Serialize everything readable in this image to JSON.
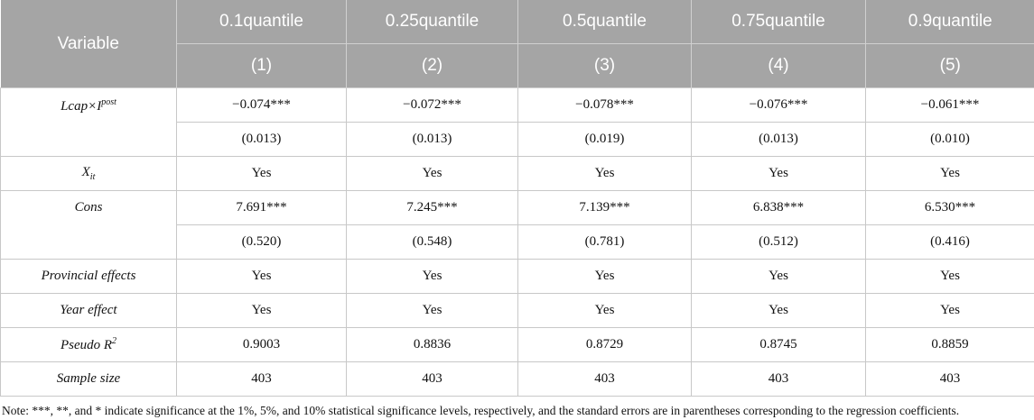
{
  "table": {
    "header": [
      "Variable",
      "0.1quantile",
      "0.25quantile",
      "0.5quantile",
      "0.75quantile",
      "0.9quantile"
    ],
    "model_numbers": [
      "(1)",
      "(2)",
      "(3)",
      "(4)",
      "(5)"
    ],
    "rows": [
      {
        "variable": {
          "text": "Lcap×I",
          "sup": "post"
        },
        "values": [
          "−0.074***",
          "−0.072***",
          "−0.078***",
          "−0.076***",
          "−0.061***"
        ],
        "std_errors": [
          "(0.013)",
          "(0.013)",
          "(0.019)",
          "(0.013)",
          "(0.010)"
        ]
      },
      {
        "variable": {
          "text": "X",
          "sub": "it"
        },
        "values": [
          "Yes",
          "Yes",
          "Yes",
          "Yes",
          "Yes"
        ]
      },
      {
        "variable": {
          "text": "Cons"
        },
        "values": [
          "7.691***",
          "7.245***",
          "7.139***",
          "6.838***",
          "6.530***"
        ],
        "std_errors": [
          "(0.520)",
          "(0.548)",
          "(0.781)",
          "(0.512)",
          "(0.416)"
        ]
      },
      {
        "variable": {
          "text": "Provincial effects"
        },
        "values": [
          "Yes",
          "Yes",
          "Yes",
          "Yes",
          "Yes"
        ]
      },
      {
        "variable": {
          "text": "Year effect"
        },
        "values": [
          "Yes",
          "Yes",
          "Yes",
          "Yes",
          "Yes"
        ]
      },
      {
        "variable": {
          "text": "Pseudo R",
          "sup": "2"
        },
        "values": [
          "0.9003",
          "0.8836",
          "0.8729",
          "0.8745",
          "0.8859"
        ]
      },
      {
        "variable": {
          "text": "Sample size"
        },
        "values": [
          "403",
          "403",
          "403",
          "403",
          "403"
        ]
      }
    ]
  },
  "note": "Note: ***, **, and * indicate significance at the 1%, 5%, and 10% statistical significance levels, respectively, and the standard errors are in parentheses corresponding to the regression coefficients."
}
